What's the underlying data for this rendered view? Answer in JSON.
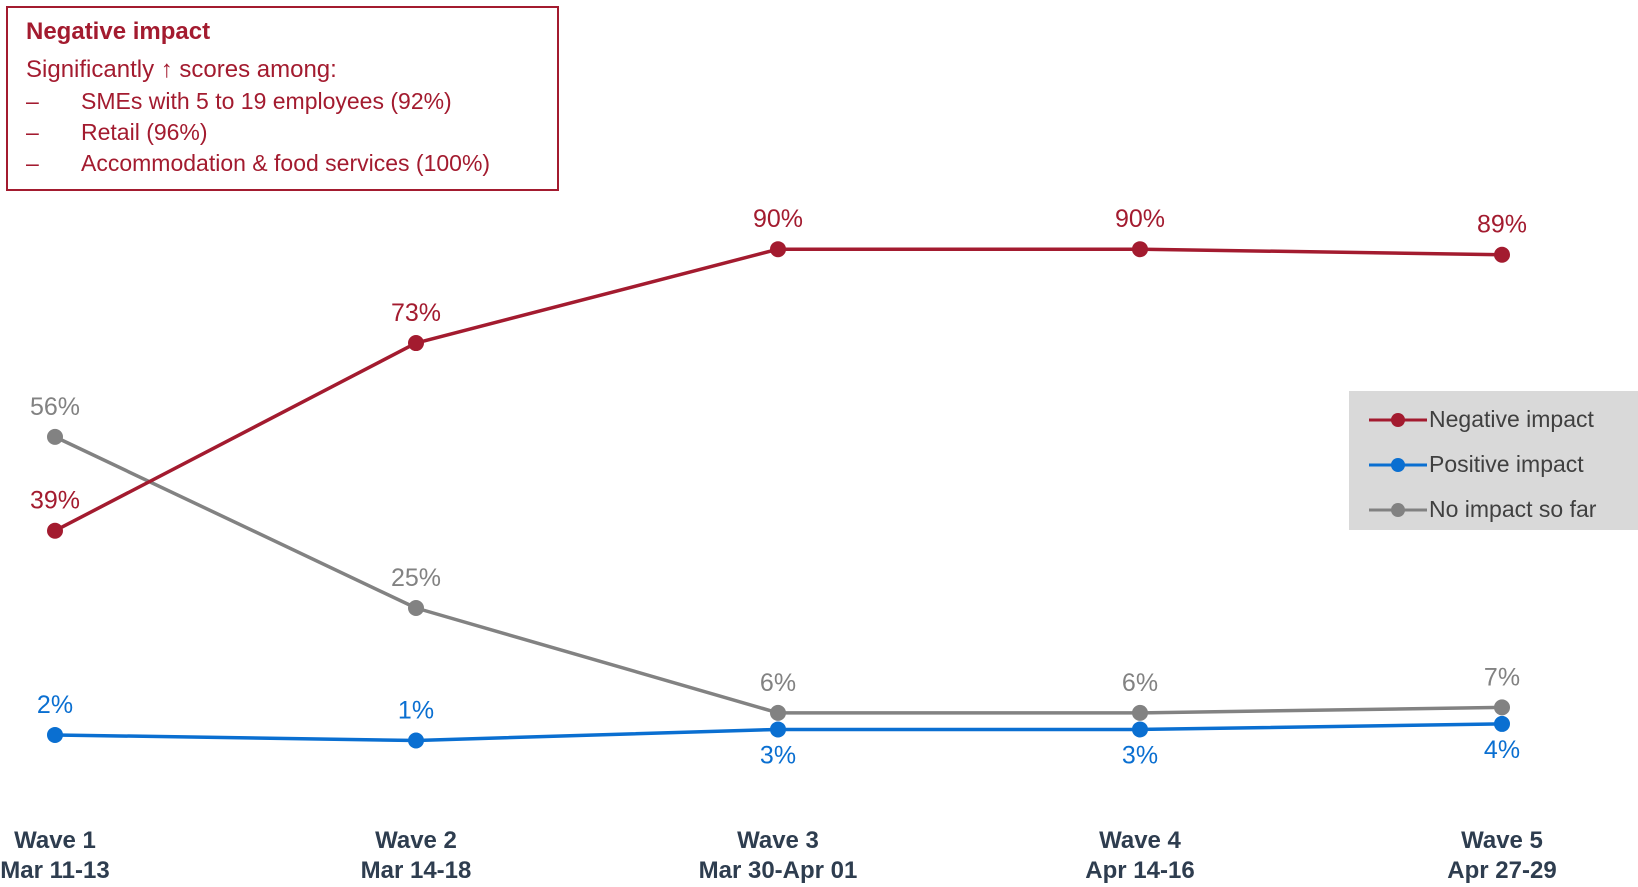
{
  "colors": {
    "negative": "#a31b2f",
    "positive": "#0a6fd1",
    "none": "#828282",
    "axis_text": "#2e3d4f"
  },
  "callout": {
    "title": "Negative impact",
    "subtitle": "Significantly ↑ scores among:",
    "items": [
      "SMEs with 5 to 19 employees (92%)",
      "Retail (96%)",
      "Accommodation & food services (100%)"
    ],
    "bullet": "–"
  },
  "chart_data": {
    "type": "line",
    "title": "",
    "xlabel": "",
    "ylabel": "",
    "ylim": [
      0,
      100
    ],
    "grid": false,
    "legend_position": "right",
    "categories": [
      [
        "Wave 1",
        "Mar 11-13"
      ],
      [
        "Wave 2",
        "Mar 14-18"
      ],
      [
        "Wave 3",
        "Mar 30-Apr 01"
      ],
      [
        "Wave 4",
        "Apr 14-16"
      ],
      [
        "Wave 5",
        "Apr 27-29"
      ]
    ],
    "series": [
      {
        "name": "Negative impact",
        "key": "negative",
        "values": [
          39,
          73,
          90,
          90,
          89
        ],
        "labels": [
          "39%",
          "73%",
          "90%",
          "90%",
          "89%"
        ],
        "label_side": [
          "above",
          "above",
          "above",
          "above",
          "above"
        ]
      },
      {
        "name": "Positive impact",
        "key": "positive",
        "values": [
          2,
          1,
          3,
          3,
          4
        ],
        "labels": [
          "2%",
          "1%",
          "3%",
          "3%",
          "4%"
        ],
        "label_side": [
          "above",
          "above",
          "below",
          "below",
          "below"
        ]
      },
      {
        "name": "No impact so far",
        "key": "none",
        "values": [
          56,
          25,
          6,
          6,
          7
        ],
        "labels": [
          "56%",
          "25%",
          "6%",
          "6%",
          "7%"
        ],
        "label_side": [
          "above",
          "above",
          "above",
          "above",
          "above"
        ]
      }
    ]
  }
}
